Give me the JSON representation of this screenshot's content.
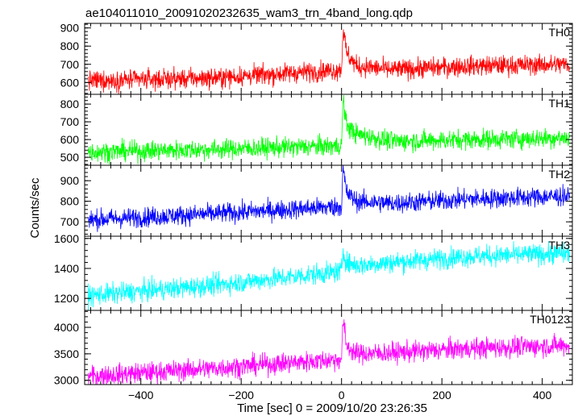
{
  "title": "ae104011010_20091020232635_wam3_trn_4band_long.qdp",
  "xlabel": "Time [sec] 0 = 2009/10/20 23:26:35",
  "ylabel": "Counts/sec",
  "chart_data": {
    "type": "line",
    "shared_x": true,
    "xlim": [
      -512,
      460
    ],
    "xticks": [
      -400,
      -200,
      0,
      200,
      400
    ],
    "xtick_labels": [
      "−400",
      "−200",
      "0",
      "200",
      "400"
    ],
    "panels": [
      {
        "name": "TH0",
        "color": "#ff0000",
        "ylim": [
          535,
          925
        ],
        "yticks": [
          600,
          700,
          800,
          900
        ],
        "ytick_labels": [
          "600",
          "700",
          "800",
          "900"
        ],
        "series": {
          "x": [
            -500,
            -250,
            0,
            3,
            10,
            30,
            100,
            250,
            450
          ],
          "y": [
            610,
            625,
            670,
            905,
            760,
            690,
            670,
            690,
            700
          ]
        }
      },
      {
        "name": "TH1",
        "color": "#00ff00",
        "ylim": [
          455,
          855
        ],
        "yticks": [
          500,
          600,
          700,
          800
        ],
        "ytick_labels": [
          "500",
          "600",
          "700",
          "800"
        ],
        "series": {
          "x": [
            -500,
            -250,
            0,
            3,
            10,
            30,
            100,
            250,
            450
          ],
          "y": [
            530,
            545,
            565,
            830,
            680,
            630,
            590,
            600,
            610
          ]
        }
      },
      {
        "name": "TH2",
        "color": "#0000ff",
        "ylim": [
          630,
          975
        ],
        "yticks": [
          700,
          800,
          900
        ],
        "ytick_labels": [
          "700",
          "800",
          "900"
        ],
        "series": {
          "x": [
            -500,
            -250,
            0,
            3,
            10,
            30,
            100,
            250,
            450
          ],
          "y": [
            710,
            740,
            775,
            960,
            840,
            800,
            790,
            810,
            825
          ]
        }
      },
      {
        "name": "TH3",
        "color": "#00ffff",
        "ylim": [
          1120,
          1615
        ],
        "yticks": [
          1200,
          1400,
          1600
        ],
        "ytick_labels": [
          "1200",
          "1400",
          "1600"
        ],
        "series": {
          "x": [
            -500,
            -250,
            0,
            3,
            10,
            30,
            100,
            250,
            450
          ],
          "y": [
            1220,
            1290,
            1380,
            1520,
            1440,
            1420,
            1440,
            1480,
            1500
          ]
        }
      },
      {
        "name": "TH0123",
        "color": "#ff00ff",
        "ylim": [
          2920,
          4320
        ],
        "yticks": [
          3000,
          3500,
          4000
        ],
        "ytick_labels": [
          "3000",
          "3500",
          "4000"
        ],
        "series": {
          "x": [
            -500,
            -250,
            0,
            3,
            10,
            30,
            100,
            250,
            450
          ],
          "y": [
            3080,
            3230,
            3400,
            4150,
            3650,
            3500,
            3520,
            3600,
            3660
          ]
        }
      }
    ]
  }
}
